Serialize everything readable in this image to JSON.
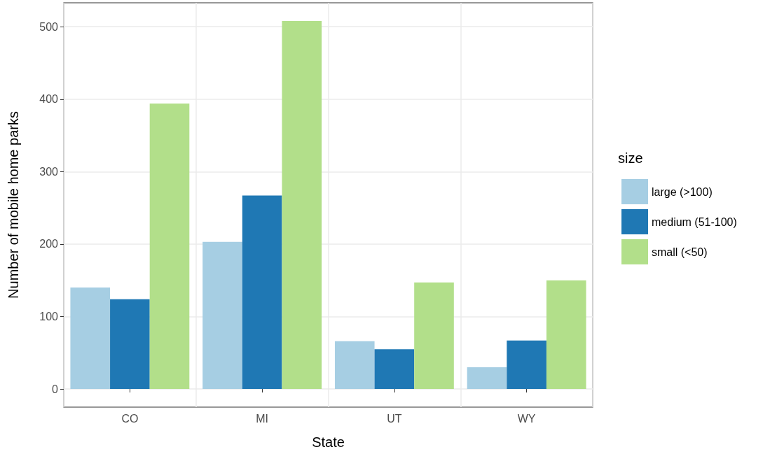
{
  "chart_data": {
    "type": "bar",
    "xlabel": "State",
    "ylabel": "Number of mobile home parks",
    "legend_title": "size",
    "categories": [
      "CO",
      "MI",
      "UT",
      "WY"
    ],
    "series": [
      {
        "name": "large (>100)",
        "color": "#a6cee3",
        "values": [
          140,
          203,
          66,
          30
        ]
      },
      {
        "name": "medium (51-100)",
        "color": "#1f78b4",
        "values": [
          124,
          267,
          55,
          67
        ]
      },
      {
        "name": "small (<50)",
        "color": "#b2df8a",
        "values": [
          394,
          508,
          147,
          150
        ]
      }
    ],
    "ylim": [
      -25,
      533
    ],
    "yticks": [
      0,
      100,
      200,
      300,
      400,
      500
    ],
    "grid": true,
    "legend": "right"
  }
}
